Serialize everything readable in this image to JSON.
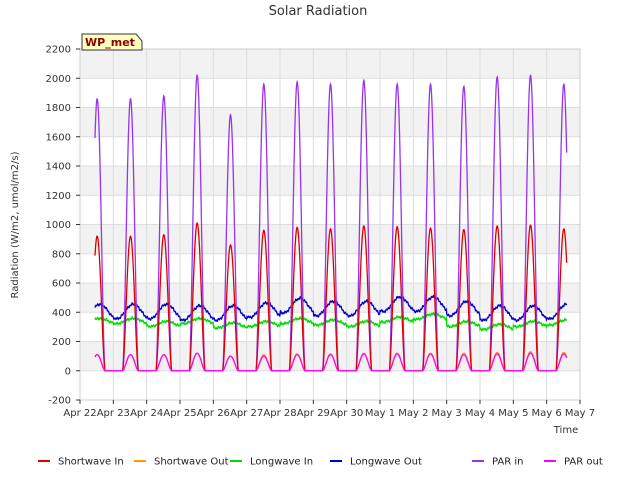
{
  "chart_data": {
    "type": "line",
    "title": "Solar Radiation",
    "xlabel": "Time",
    "ylabel": "Radiation (W/m2, umol/m2/s)",
    "ylim": [
      -200,
      2200
    ],
    "yticks": [
      -200,
      0,
      200,
      400,
      600,
      800,
      1000,
      1200,
      1400,
      1600,
      1800,
      2000,
      2200
    ],
    "xlim": [
      "2023-04-22",
      "2023-05-07"
    ],
    "xticks": [
      "Apr 22",
      "Apr 23",
      "Apr 24",
      "Apr 25",
      "Apr 26",
      "Apr 27",
      "Apr 28",
      "Apr 29",
      "Apr 30",
      "May 1",
      "May 2",
      "May 3",
      "May 4",
      "May 5",
      "May 6",
      "May 7"
    ],
    "grid": true,
    "legend_position": "bottom",
    "badge": "WP_met",
    "days": [
      "Apr 23",
      "Apr 24",
      "Apr 25",
      "Apr 26",
      "Apr 27",
      "Apr 28",
      "Apr 29",
      "Apr 30",
      "May 1",
      "May 2",
      "May 3",
      "May 4",
      "May 5",
      "May 6"
    ],
    "series": [
      {
        "name": "Shortwave In",
        "color": "#dd0000",
        "kind": "daily_peak",
        "daily_peaks": [
          920,
          930,
          1010,
          860,
          960,
          980,
          970,
          990,
          985,
          975,
          965,
          990,
          995,
          970
        ]
      },
      {
        "name": "Shortwave Out",
        "color": "#ff9900",
        "kind": "daily_peak",
        "daily_peaks": [
          110,
          110,
          120,
          100,
          110,
          115,
          115,
          120,
          120,
          120,
          120,
          125,
          130,
          125
        ]
      },
      {
        "name": "Longwave In",
        "color": "#00dd00",
        "kind": "level",
        "daily_levels": [
          340,
          320,
          340,
          310,
          320,
          340,
          330,
          320,
          350,
          370,
          320,
          300,
          320,
          330
        ]
      },
      {
        "name": "Longwave Out",
        "color": "#0000cc",
        "kind": "level",
        "daily_levels": [
          420,
          420,
          410,
          410,
          430,
          460,
          440,
          440,
          470,
          470,
          440,
          410,
          410,
          420
        ]
      },
      {
        "name": "PAR in",
        "color": "#9933ee",
        "kind": "daily_peak",
        "daily_peaks": [
          1860,
          1880,
          2020,
          1750,
          1960,
          1975,
          1960,
          1985,
          1960,
          1960,
          1945,
          2010,
          2020,
          1960
        ]
      },
      {
        "name": "PAR out",
        "color": "#ff00ff",
        "kind": "daily_peak",
        "daily_peaks": [
          110,
          110,
          120,
          100,
          100,
          110,
          110,
          115,
          115,
          115,
          110,
          115,
          120,
          115
        ]
      }
    ]
  }
}
